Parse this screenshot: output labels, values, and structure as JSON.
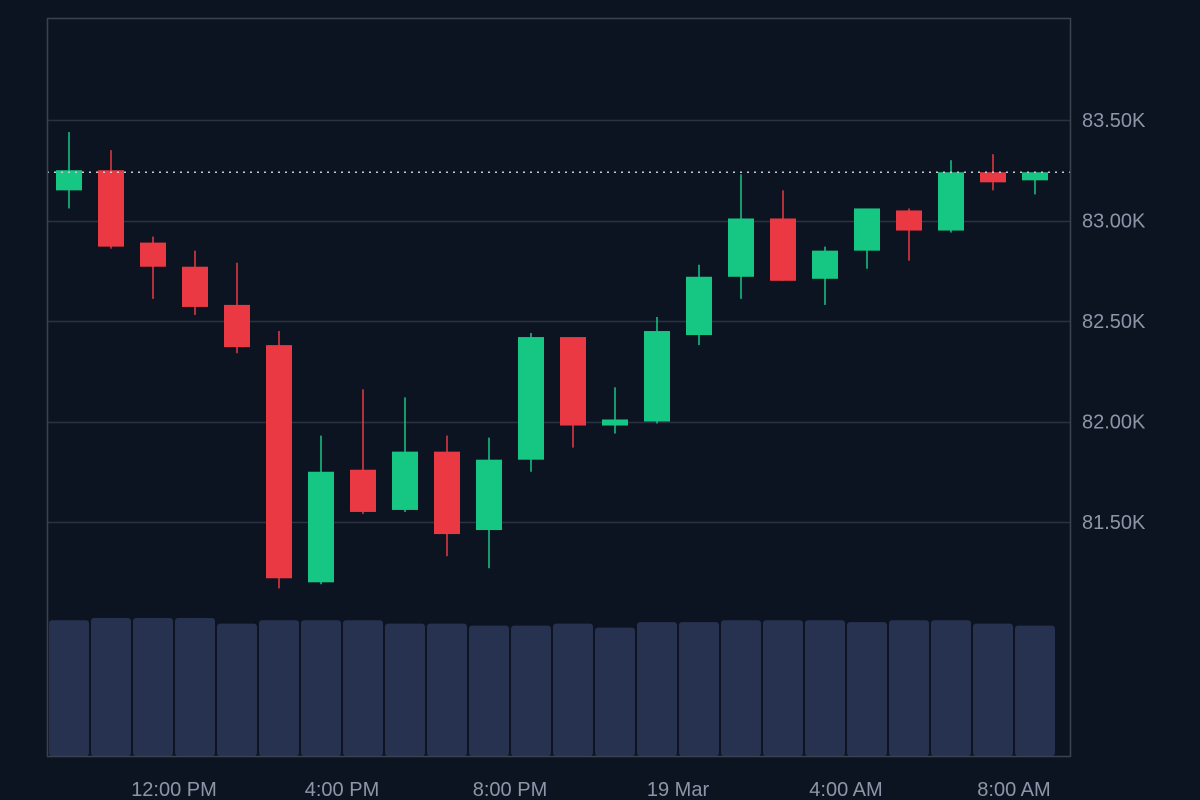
{
  "chart_data": {
    "type": "candlestick",
    "y_axis": {
      "range": [
        80.5,
        83.99
      ],
      "ticks": [
        81.5,
        82.0,
        82.5,
        83.0,
        83.5
      ],
      "tick_labels": [
        "81.50K",
        "82.00K",
        "82.50K",
        "83.00K",
        "83.50K"
      ],
      "position": "right",
      "grid": true
    },
    "x_axis": {
      "tick_labels": [
        "12:00 PM",
        "4:00 PM",
        "8:00 PM",
        "19 Mar",
        "4:00 AM",
        "8:00 AM"
      ],
      "tick_candle_index": [
        2.5,
        6.5,
        10.5,
        14.5,
        18.5,
        22.5
      ]
    },
    "last_price": 83.24,
    "last_price_line": "dotted",
    "colors": {
      "up": "#16c784",
      "down": "#ea3943",
      "volume": "#273150",
      "grid": "#2a3142",
      "axis": "#3a4252",
      "text": "#8e95a8",
      "background": "#0d1421",
      "price_line": "#c8ccd6"
    },
    "candles": [
      {
        "open": 83.15,
        "high": 83.44,
        "low": 83.06,
        "close": 83.25
      },
      {
        "open": 83.25,
        "high": 83.35,
        "low": 82.86,
        "close": 82.87
      },
      {
        "open": 82.89,
        "high": 82.92,
        "low": 82.61,
        "close": 82.77
      },
      {
        "open": 82.77,
        "high": 82.85,
        "low": 82.53,
        "close": 82.57
      },
      {
        "open": 82.58,
        "high": 82.79,
        "low": 82.34,
        "close": 82.37
      },
      {
        "open": 82.38,
        "high": 82.45,
        "low": 81.17,
        "close": 81.22
      },
      {
        "open": 81.2,
        "high": 81.93,
        "low": 81.19,
        "close": 81.75
      },
      {
        "open": 81.76,
        "high": 82.16,
        "low": 81.54,
        "close": 81.55
      },
      {
        "open": 81.56,
        "high": 82.12,
        "low": 81.55,
        "close": 81.85
      },
      {
        "open": 81.85,
        "high": 81.93,
        "low": 81.33,
        "close": 81.44
      },
      {
        "open": 81.46,
        "high": 81.92,
        "low": 81.27,
        "close": 81.81
      },
      {
        "open": 81.81,
        "high": 82.44,
        "low": 81.75,
        "close": 82.42
      },
      {
        "open": 82.42,
        "high": 82.42,
        "low": 81.87,
        "close": 81.98
      },
      {
        "open": 81.98,
        "high": 82.17,
        "low": 81.94,
        "close": 82.01
      },
      {
        "open": 82.0,
        "high": 82.52,
        "low": 81.99,
        "close": 82.45
      },
      {
        "open": 82.43,
        "high": 82.78,
        "low": 82.38,
        "close": 82.72
      },
      {
        "open": 82.72,
        "high": 83.23,
        "low": 82.61,
        "close": 83.01
      },
      {
        "open": 83.01,
        "high": 83.15,
        "low": 82.7,
        "close": 82.7
      },
      {
        "open": 82.71,
        "high": 82.87,
        "low": 82.58,
        "close": 82.85
      },
      {
        "open": 82.85,
        "high": 83.06,
        "low": 82.76,
        "close": 83.06
      },
      {
        "open": 83.05,
        "high": 83.06,
        "low": 82.8,
        "close": 82.95
      },
      {
        "open": 82.95,
        "high": 83.3,
        "low": 82.94,
        "close": 83.24
      },
      {
        "open": 83.24,
        "high": 83.33,
        "low": 83.15,
        "close": 83.19
      },
      {
        "open": 83.2,
        "high": 83.24,
        "low": 83.13,
        "close": 83.24
      }
    ],
    "volume": [
      0.984,
      1.0,
      1.0,
      1.0,
      0.959,
      0.984,
      0.984,
      0.984,
      0.959,
      0.959,
      0.945,
      0.945,
      0.959,
      0.93,
      0.97,
      0.97,
      0.984,
      0.984,
      0.984,
      0.97,
      0.984,
      0.984,
      0.959,
      0.945
    ]
  }
}
